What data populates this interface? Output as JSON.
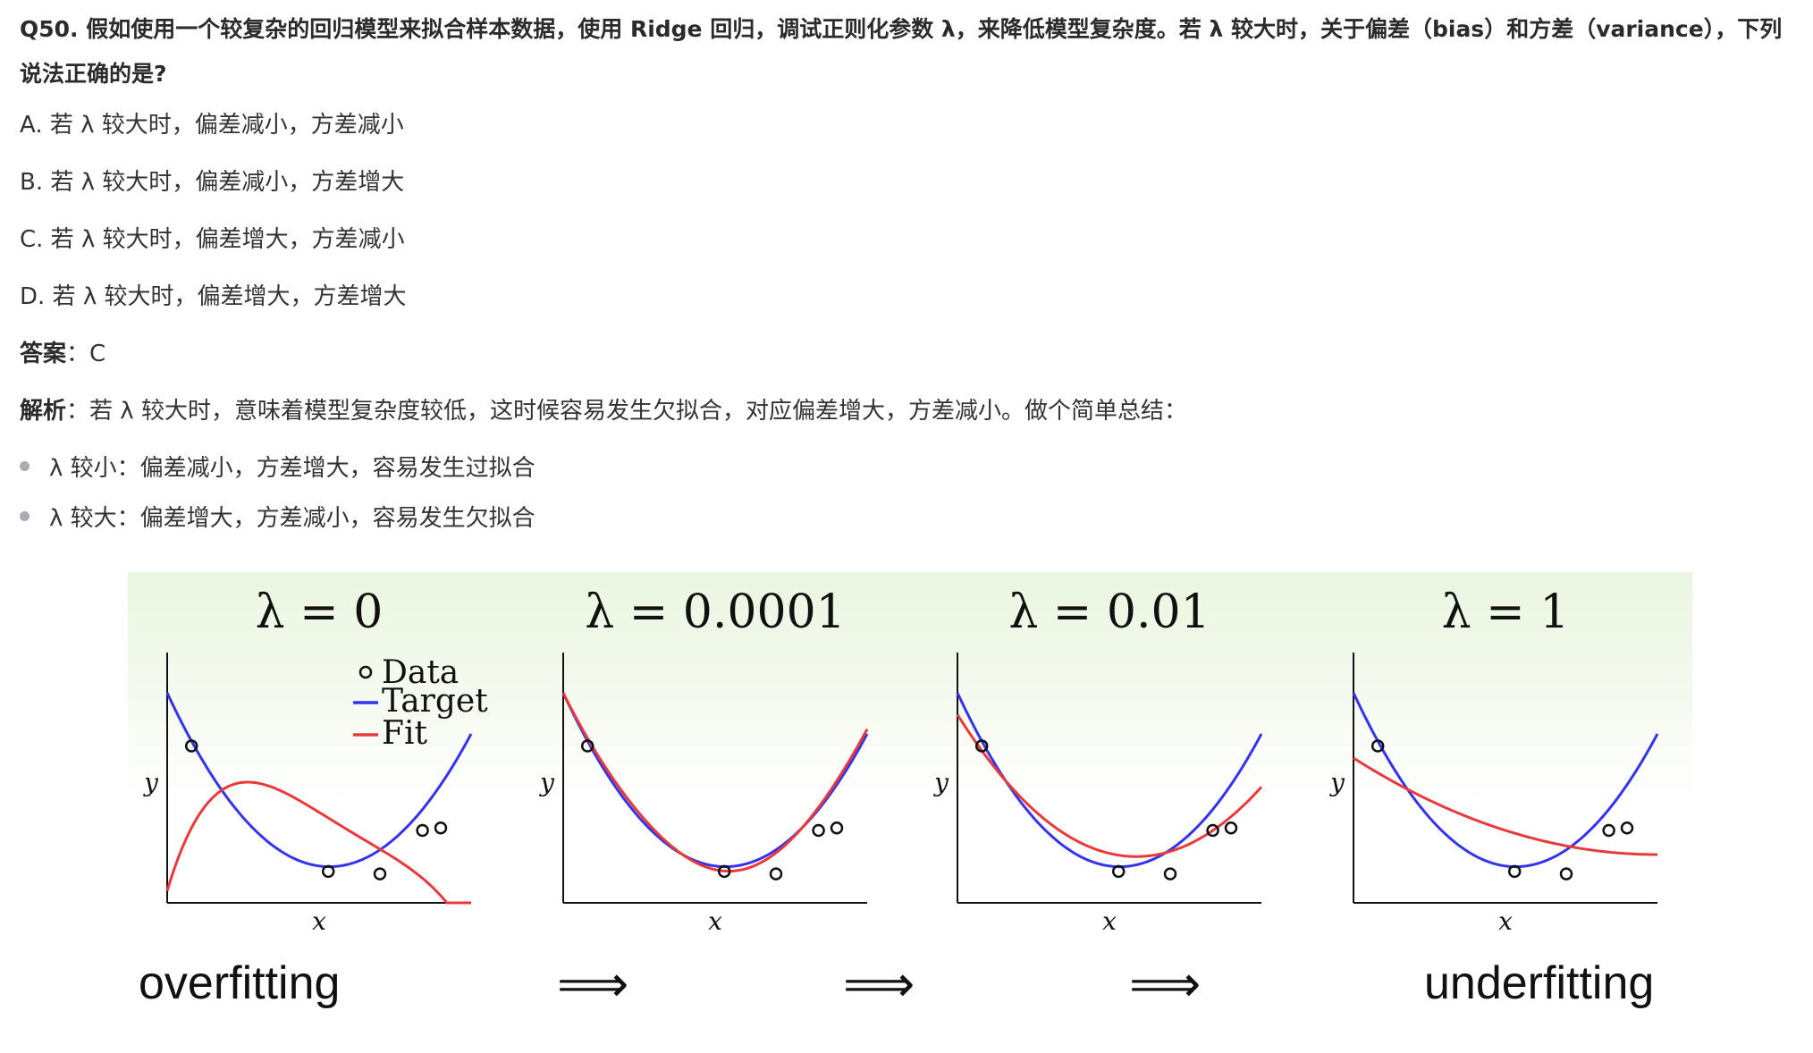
{
  "question": {
    "title": "Q50. 假如使用一个较复杂的回归模型来拟合样本数据，使用 Ridge 回归，调试正则化参数 λ，来降低模型复杂度。若 λ 较大时，关于偏差（bias）和方差（variance），下列说法正确的是?"
  },
  "options": [
    "A. 若 λ 较大时，偏差减小，方差减小",
    "B. 若 λ 较大时，偏差减小，方差增大",
    "C. 若 λ 较大时，偏差增大，方差减小",
    "D. 若 λ 较大时，偏差增大，方差增大"
  ],
  "answer": {
    "label": "答案",
    "value": "C"
  },
  "analysis": {
    "label": "解析",
    "text": "若 λ 较大时，意味着模型复杂度较低，这时候容易发生欠拟合，对应偏差增大，方差减小。做个简单总结："
  },
  "bullets": [
    "λ 较小：偏差减小，方差增大，容易发生过拟合",
    "λ 较大：偏差增大，方差减小，容易发生欠拟合"
  ],
  "figure": {
    "panels": [
      {
        "title": "λ = 0"
      },
      {
        "title": "λ = 0.0001"
      },
      {
        "title": "λ = 0.01"
      },
      {
        "title": "λ = 1"
      }
    ],
    "xlabel": "x",
    "ylabel": "y",
    "legend": {
      "data": "Data",
      "target": "Target",
      "fit": "Fit"
    },
    "left_caption": "overfitting",
    "right_caption": "underfitting",
    "arrow": "⟹",
    "colors": {
      "target": "#3333ee",
      "fit": "#e83a3a",
      "bg_top": "#eaf6e0"
    }
  },
  "chart_data": [
    {
      "type": "line",
      "title": "λ = 0",
      "series": [
        {
          "name": "Target"
        },
        {
          "name": "Fit"
        },
        {
          "name": "Data"
        }
      ]
    },
    {
      "type": "line",
      "title": "λ = 0.0001",
      "series": [
        {
          "name": "Target"
        },
        {
          "name": "Fit"
        },
        {
          "name": "Data"
        }
      ]
    },
    {
      "type": "line",
      "title": "λ = 0.01",
      "series": [
        {
          "name": "Target"
        },
        {
          "name": "Fit"
        },
        {
          "name": "Data"
        }
      ]
    },
    {
      "type": "line",
      "title": "λ = 1",
      "series": [
        {
          "name": "Target"
        },
        {
          "name": "Fit"
        },
        {
          "name": "Data"
        }
      ]
    }
  ]
}
